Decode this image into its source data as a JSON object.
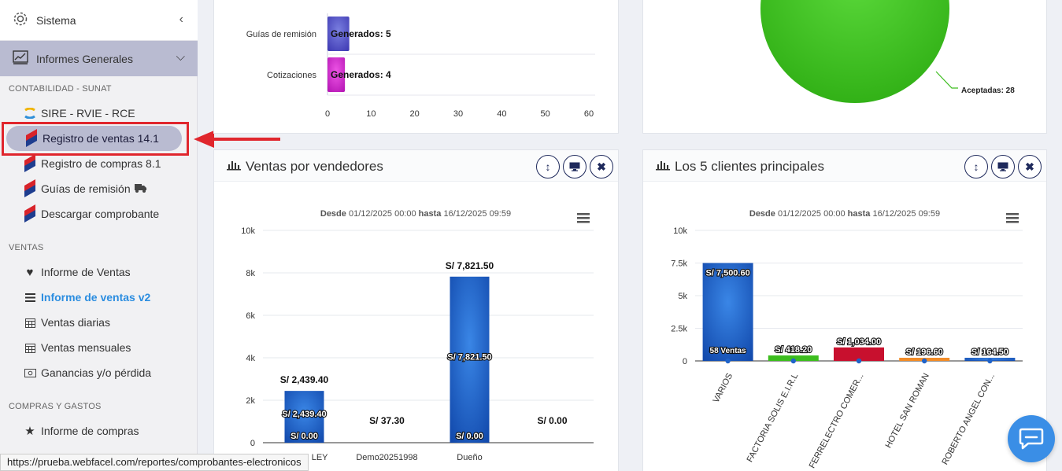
{
  "sidebar": {
    "system_label": "Sistema",
    "informes_label": "Informes Generales",
    "section_contabilidad": "CONTABILIDAD - SUNAT",
    "sire_label": "SIRE - RVIE - RCE",
    "registro_ventas_label": "Registro de ventas 14.1",
    "registro_compras_label": "Registro de compras 8.1",
    "guias_label": "Guías de remisión",
    "descargar_label": "Descargar comprobante",
    "section_ventas": "VENTAS",
    "informe_ventas_label": "Informe de Ventas",
    "informe_ventas_v2_label": "Informe de ventas v2",
    "ventas_diarias_label": "Ventas diarias",
    "ventas_mensuales_label": "Ventas mensuales",
    "ganancias_label": "Ganancias y/o pérdida",
    "section_compras": "COMPRAS Y GASTOS",
    "informe_compras_label": "Informe de compras"
  },
  "status_url": "https://prueba.webfacel.com/reportes/comprobantes-electronicos",
  "colors": {
    "accent": "#2b8de0",
    "sidebar_active": "#b9bbd1",
    "highlight": "#e0262d",
    "bar_blue": "#1f63c9",
    "pie_green": "#3cbd1e"
  },
  "top_chart": {
    "categories": [
      "Guías de remisión",
      "Cotizaciones"
    ],
    "labels": [
      "Generados: 5",
      "Generados: 4"
    ],
    "values": [
      5,
      4
    ],
    "x_ticks": [
      "0",
      "10",
      "20",
      "30",
      "40",
      "50",
      "60"
    ],
    "xlim": [
      0,
      60
    ]
  },
  "pie_card": {
    "label": "Aceptadas: 28"
  },
  "vendedores_card": {
    "title": "Ventas por vendedores",
    "range_from_label": "Desde",
    "range_from": "01/12/2025 00:00",
    "range_to_label": "hasta",
    "range_to": "16/12/2025 09:59"
  },
  "clientes_card": {
    "title": "Los 5 clientes principales",
    "range_from_label": "Desde",
    "range_from": "01/12/2025 00:00",
    "range_to_label": "hasta",
    "range_to": "16/12/2025 09:59"
  },
  "chart_data": [
    {
      "type": "bar",
      "orientation": "horizontal",
      "categories": [
        "Guías de remisión",
        "Cotizaciones"
      ],
      "values": [
        5,
        4
      ],
      "data_labels": [
        "Generados: 5",
        "Generados: 4"
      ],
      "xlim": [
        0,
        60
      ]
    },
    {
      "type": "pie",
      "slices": [
        {
          "label": "Aceptadas",
          "value": 28,
          "color": "#3cbd1e"
        }
      ]
    },
    {
      "type": "bar",
      "title": "Ventas por vendedores",
      "categories": [
        "LEY",
        "Demo20251998",
        "Dueño",
        ""
      ],
      "values": [
        2439.4,
        37.3,
        7821.5,
        0.0
      ],
      "top_labels": [
        "S/ 2,439.40",
        "S/ 37.30",
        "S/ 7,821.50",
        "S/ 0.00"
      ],
      "inner_labels": [
        "S/ 2,439.40",
        "",
        "S/ 7,821.50",
        ""
      ],
      "base_labels": [
        "S/ 0.00",
        "",
        "S/ 0.00",
        ""
      ],
      "y_ticks": [
        "0",
        "2k",
        "4k",
        "6k",
        "8k",
        "10k"
      ],
      "ylim": [
        0,
        10000
      ],
      "legend": "none"
    },
    {
      "type": "bar",
      "title": "Los 5 clientes principales",
      "categories": [
        "VARIOS",
        "FACTORIA SOLIS E.I.R.L",
        "FERRELECTRO COMER...",
        "HOTEL SAN ROMAN",
        "ROBERTO ANGEL CON..."
      ],
      "values": [
        7500.6,
        418.2,
        1034.0,
        196.6,
        164.5
      ],
      "labels": [
        "S/ 7,500.60",
        "S/ 418.20",
        "S/ 1,034.00",
        "S/ 196.60",
        "S/ 164.50"
      ],
      "inner_label": "58 Ventas",
      "colors": [
        "#1f63c9",
        "#3cbd1e",
        "#c8102e",
        "#f28c28",
        "#1f63c9"
      ],
      "y_ticks": [
        "0",
        "2.5k",
        "5k",
        "7.5k",
        "10k"
      ],
      "ylim": [
        0,
        10000
      ],
      "legend": "none"
    }
  ]
}
